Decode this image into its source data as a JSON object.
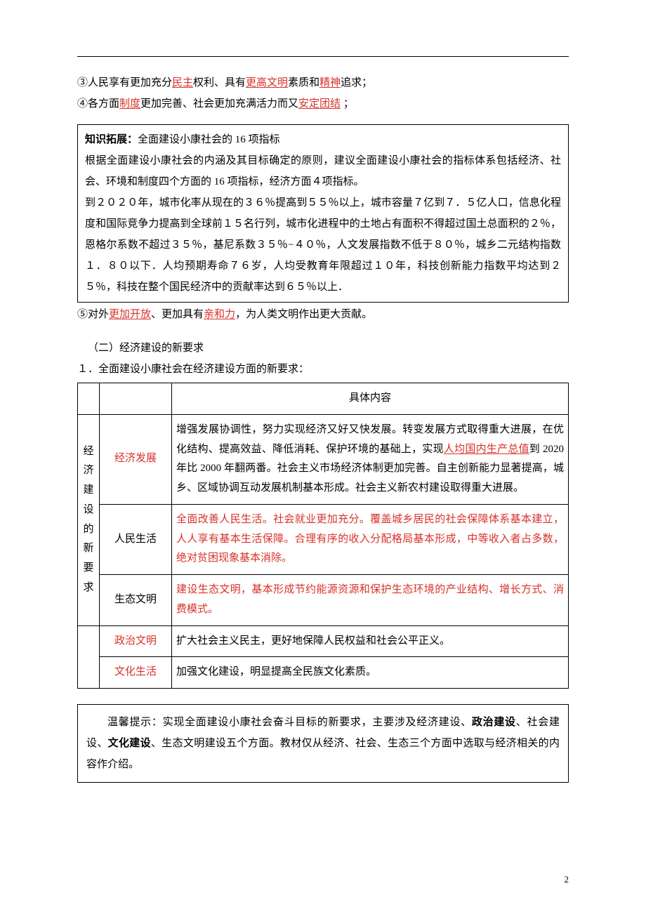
{
  "colors": {
    "text": "#000000",
    "accent_red": "#d8322a",
    "border": "#000000",
    "background": "#ffffff"
  },
  "typography": {
    "body_font": "SimSun",
    "body_size_pt": 11,
    "line_height": 2.0
  },
  "line3": {
    "prefix": "③人民享有更加充分",
    "u1": "民主",
    "mid1": "权利、具有",
    "u2": "更高文明",
    "mid2": "素质和",
    "u3": "精神",
    "suffix": "追求；"
  },
  "line4": {
    "prefix": "④各方面",
    "u1": "制度",
    "mid1": "更加完善、社会更加充满活力而又",
    "u2": "安定团结",
    "suffix": " ；"
  },
  "box16": {
    "title_bold": "知识拓展：",
    "title_rest": "全面建设小康社会的 16 项指标",
    "r1": "根据全面建设小康社会的内涵及其目标确定的原则，建议全面建设小康社会的指标体系包括经济、社会、环境和制度四个方面的 16 项指标，经济方面４项指标。",
    "r2": "到２０２０年，城市化率从现在的３６％提高到５５％以上，城市容量７亿到７．５亿人口，信息化程度和国际竞争力提高到全球前１５名行列，城市化进程中的土地占有面积不得超过国土总面积的２％，恩格尔系数不超过３５％，基尼系数３５％−４０％，人文发展指数不低于８０％，城乡二元结构指数１．８０以下．人均预期寿命７６岁，人均受教育年限超过１０年，科技创新能力指数平均达到２５％，科技在整个国民经济中的贡献率达到６５％以上．"
  },
  "line5": {
    "prefix": "⑤对外",
    "u1": "更加开放",
    "mid1": "、更加具有",
    "u2": "亲和力",
    "suffix": "，为人类文明作出更大贡献。"
  },
  "section2_heading": "（二）经济建设的新要求",
  "section2_sub": "１．全面建设小康社会在经济建设方面的新要求：",
  "table": {
    "header_col3": "具体内容",
    "vlabel": "经济建设的新要求",
    "rows": [
      {
        "label": "经济发展",
        "label_red": true,
        "body_parts": {
          "pre": "增强发展协调性，努力实现经济又好又快发展。转变发展方式取得重大进展，在优化结构、提高效益、降低消耗、保护环境的基础上，实现",
          "u_red": "人均国内生产总值",
          "post": "到 2020 年比 2000 年翻两番。社会主义市场经济体制更加完善。自主创新能力显著提高，城乡、区域协调互动发展机制基本形成。社会主义新农村建设取得重大进展。"
        }
      },
      {
        "label": "人民生活",
        "label_red": false,
        "body_red": "全面改善人民生活。社会就业更加充分。覆盖城乡居民的社会保障体系基本建立，人人享有基本生活保障。合理有序的收入分配格局基本形成，中等收入者占多数，绝对贫困现象基本消除。"
      },
      {
        "label": "生态文明",
        "label_red": false,
        "body_red": "建设生态文明，基本形成节约能源资源和保护生态环境的产业结构、增长方式、消费模式。"
      },
      {
        "label": "政治文明",
        "label_red": true,
        "body": "扩大社会主义民主，更好地保障人民权益和社会公平正义。"
      },
      {
        "label": "文化生活",
        "label_red": true,
        "body": "加强文化建设，明显提高全民族文化素质。"
      }
    ]
  },
  "tip": {
    "p1_a": "温馨提示：实现全面建设小康社会奋斗目标的新要求，主要涉及经济建设、",
    "b1": "政治建设",
    "p1_b": "、社会建设、",
    "b2": "文化建设",
    "p1_c": "、生态文明建设五个方面。教材仅从经济、社会、生态三个方面中选取与经济相关的内容作介绍。"
  },
  "page_number": "2"
}
